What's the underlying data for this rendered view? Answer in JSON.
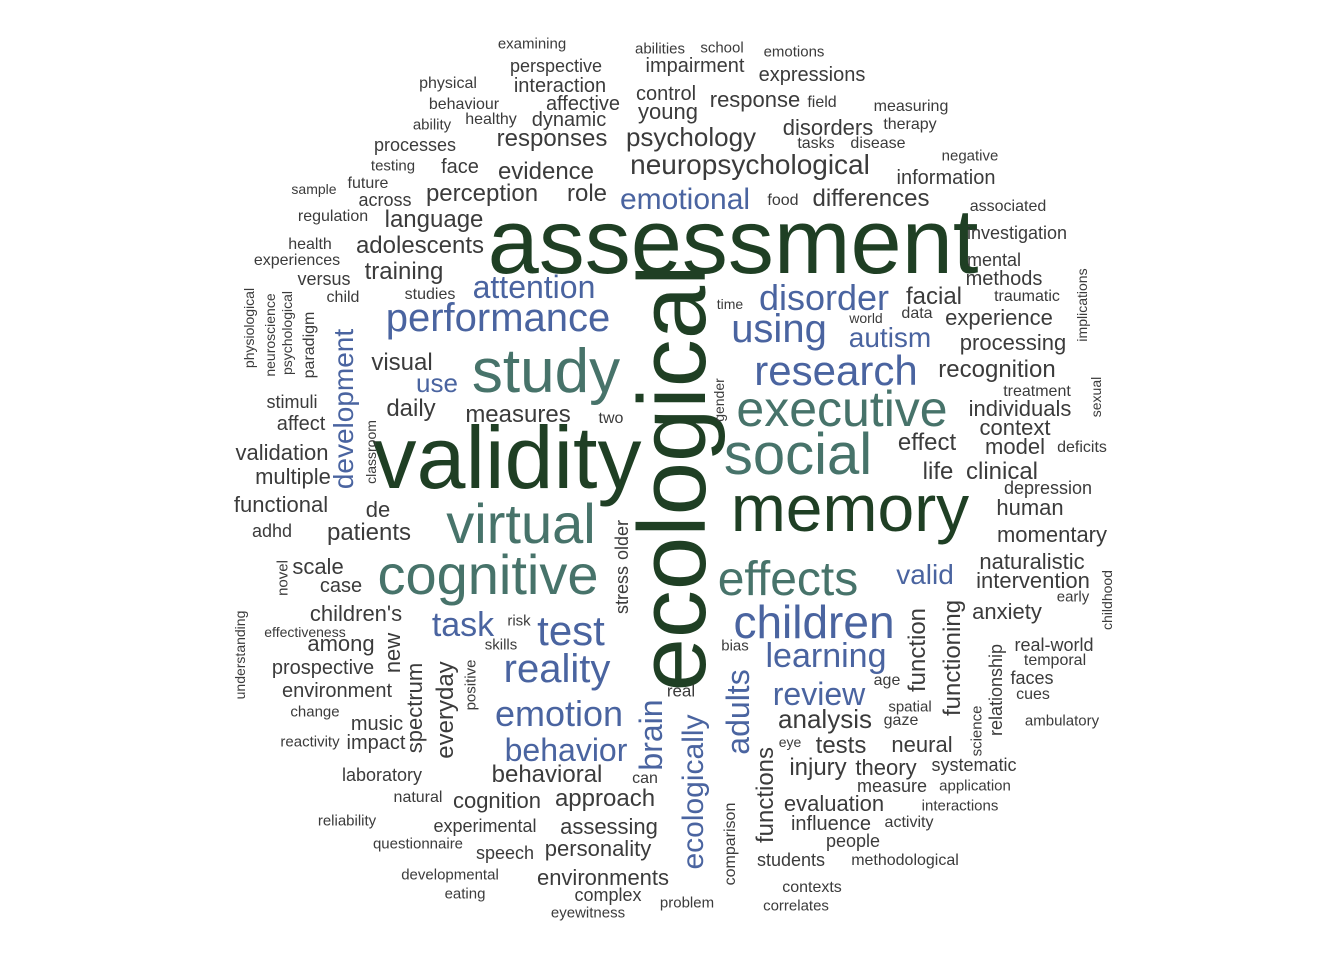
{
  "colors": {
    "dark": "#1F3F24",
    "teal": "#47736A",
    "blue": "#4A64A0",
    "gray": "#3B3B3B",
    "background": "#FFFFFF"
  },
  "words": [
    {
      "text": "assessment",
      "c": "dark"
    },
    {
      "text": "ecological",
      "c": "dark"
    },
    {
      "text": "validity",
      "c": "dark"
    },
    {
      "text": "memory",
      "c": "dark"
    },
    {
      "text": "cognitive",
      "c": "teal"
    },
    {
      "text": "study",
      "c": "teal"
    },
    {
      "text": "virtual",
      "c": "teal"
    },
    {
      "text": "social",
      "c": "teal"
    },
    {
      "text": "executive",
      "c": "teal"
    },
    {
      "text": "effects",
      "c": "teal"
    },
    {
      "text": "children",
      "c": "blue"
    },
    {
      "text": "research",
      "c": "blue"
    },
    {
      "text": "performance",
      "c": "blue"
    },
    {
      "text": "using",
      "c": "blue"
    },
    {
      "text": "disorder",
      "c": "blue"
    },
    {
      "text": "reality",
      "c": "blue"
    },
    {
      "text": "test",
      "c": "blue"
    },
    {
      "text": "emotion",
      "c": "blue"
    },
    {
      "text": "behavior",
      "c": "blue"
    },
    {
      "text": "learning",
      "c": "blue"
    },
    {
      "text": "review",
      "c": "blue"
    },
    {
      "text": "task",
      "c": "blue"
    },
    {
      "text": "attention",
      "c": "blue"
    },
    {
      "text": "emotional",
      "c": "blue"
    },
    {
      "text": "autism",
      "c": "blue"
    },
    {
      "text": "valid",
      "c": "blue"
    },
    {
      "text": "use",
      "c": "blue"
    },
    {
      "text": "development",
      "c": "blue"
    },
    {
      "text": "adults",
      "c": "blue"
    },
    {
      "text": "brain",
      "c": "blue"
    },
    {
      "text": "ecologically",
      "c": "blue"
    },
    {
      "text": "neuropsychological",
      "c": "gray"
    },
    {
      "text": "psychology",
      "c": "gray"
    },
    {
      "text": "responses",
      "c": "gray"
    },
    {
      "text": "evidence",
      "c": "gray"
    },
    {
      "text": "perception",
      "c": "gray"
    },
    {
      "text": "role",
      "c": "gray"
    },
    {
      "text": "differences",
      "c": "gray"
    },
    {
      "text": "language",
      "c": "gray"
    },
    {
      "text": "adolescents",
      "c": "gray"
    },
    {
      "text": "training",
      "c": "gray"
    },
    {
      "text": "facial",
      "c": "gray"
    },
    {
      "text": "experience",
      "c": "gray"
    },
    {
      "text": "processing",
      "c": "gray"
    },
    {
      "text": "recognition",
      "c": "gray"
    },
    {
      "text": "individuals",
      "c": "gray"
    },
    {
      "text": "context",
      "c": "gray"
    },
    {
      "text": "effect",
      "c": "gray"
    },
    {
      "text": "life",
      "c": "gray"
    },
    {
      "text": "clinical",
      "c": "gray"
    },
    {
      "text": "model",
      "c": "gray"
    },
    {
      "text": "visual",
      "c": "gray"
    },
    {
      "text": "daily",
      "c": "gray"
    },
    {
      "text": "measures",
      "c": "gray"
    },
    {
      "text": "patients",
      "c": "gray"
    },
    {
      "text": "validation",
      "c": "gray"
    },
    {
      "text": "multiple",
      "c": "gray"
    },
    {
      "text": "functional",
      "c": "gray"
    },
    {
      "text": "human",
      "c": "gray"
    },
    {
      "text": "momentary",
      "c": "gray"
    },
    {
      "text": "naturalistic",
      "c": "gray"
    },
    {
      "text": "intervention",
      "c": "gray"
    },
    {
      "text": "anxiety",
      "c": "gray"
    },
    {
      "text": "analysis",
      "c": "gray"
    },
    {
      "text": "tests",
      "c": "gray"
    },
    {
      "text": "injury",
      "c": "gray"
    },
    {
      "text": "neural",
      "c": "gray"
    },
    {
      "text": "theory",
      "c": "gray"
    },
    {
      "text": "behavioral",
      "c": "gray"
    },
    {
      "text": "approach",
      "c": "gray"
    },
    {
      "text": "cognition",
      "c": "gray"
    },
    {
      "text": "assessing",
      "c": "gray"
    },
    {
      "text": "personality",
      "c": "gray"
    },
    {
      "text": "environments",
      "c": "gray"
    },
    {
      "text": "evaluation",
      "c": "gray"
    },
    {
      "text": "influence",
      "c": "gray"
    },
    {
      "text": "children's",
      "c": "gray"
    },
    {
      "text": "among",
      "c": "gray"
    },
    {
      "text": "environment",
      "c": "gray"
    },
    {
      "text": "scale",
      "c": "gray"
    },
    {
      "text": "case",
      "c": "gray"
    },
    {
      "text": "de",
      "c": "gray"
    },
    {
      "text": "information",
      "c": "gray"
    },
    {
      "text": "methods",
      "c": "gray"
    },
    {
      "text": "mental",
      "c": "gray"
    },
    {
      "text": "investigation",
      "c": "gray"
    },
    {
      "text": "expressions",
      "c": "gray"
    },
    {
      "text": "response",
      "c": "gray"
    },
    {
      "text": "disorders",
      "c": "gray"
    },
    {
      "text": "impairment",
      "c": "gray"
    },
    {
      "text": "control",
      "c": "gray"
    },
    {
      "text": "young",
      "c": "gray"
    },
    {
      "text": "dynamic",
      "c": "gray"
    },
    {
      "text": "interaction",
      "c": "gray"
    },
    {
      "text": "perspective",
      "c": "gray"
    },
    {
      "text": "affective",
      "c": "gray"
    },
    {
      "text": "face",
      "c": "gray"
    },
    {
      "text": "processes",
      "c": "gray"
    },
    {
      "text": "across",
      "c": "gray"
    },
    {
      "text": "future",
      "c": "gray"
    },
    {
      "text": "regulation",
      "c": "gray"
    },
    {
      "text": "health",
      "c": "gray"
    },
    {
      "text": "experiences",
      "c": "gray"
    },
    {
      "text": "versus",
      "c": "gray"
    },
    {
      "text": "child",
      "c": "gray"
    },
    {
      "text": "studies",
      "c": "gray"
    },
    {
      "text": "stimuli",
      "c": "gray"
    },
    {
      "text": "affect",
      "c": "gray"
    },
    {
      "text": "adhd",
      "c": "gray"
    },
    {
      "text": "prospective",
      "c": "gray"
    },
    {
      "text": "music",
      "c": "gray"
    },
    {
      "text": "impact",
      "c": "gray"
    },
    {
      "text": "laboratory",
      "c": "gray"
    },
    {
      "text": "natural",
      "c": "gray"
    },
    {
      "text": "experimental",
      "c": "gray"
    },
    {
      "text": "speech",
      "c": "gray"
    },
    {
      "text": "complex",
      "c": "gray"
    },
    {
      "text": "functions",
      "c": "gray"
    },
    {
      "text": "function",
      "c": "gray"
    },
    {
      "text": "functioning",
      "c": "gray"
    },
    {
      "text": "everyday",
      "c": "gray"
    },
    {
      "text": "new",
      "c": "gray"
    },
    {
      "text": "spectrum",
      "c": "gray"
    },
    {
      "text": "stress",
      "c": "gray"
    },
    {
      "text": "older",
      "c": "gray"
    },
    {
      "text": "students",
      "c": "gray"
    },
    {
      "text": "people",
      "c": "gray"
    },
    {
      "text": "contexts",
      "c": "gray"
    },
    {
      "text": "systematic",
      "c": "gray"
    },
    {
      "text": "measure",
      "c": "gray"
    },
    {
      "text": "real-world",
      "c": "gray"
    },
    {
      "text": "temporal",
      "c": "gray"
    },
    {
      "text": "faces",
      "c": "gray"
    },
    {
      "text": "depression",
      "c": "gray"
    },
    {
      "text": "deficits",
      "c": "gray"
    },
    {
      "text": "traumatic",
      "c": "gray"
    },
    {
      "text": "treatment",
      "c": "gray"
    },
    {
      "text": "examining",
      "c": "gray"
    },
    {
      "text": "abilities",
      "c": "gray"
    },
    {
      "text": "school",
      "c": "gray"
    },
    {
      "text": "emotions",
      "c": "gray"
    },
    {
      "text": "physical",
      "c": "gray"
    },
    {
      "text": "behaviour",
      "c": "gray"
    },
    {
      "text": "healthy",
      "c": "gray"
    },
    {
      "text": "ability",
      "c": "gray"
    },
    {
      "text": "field",
      "c": "gray"
    },
    {
      "text": "measuring",
      "c": "gray"
    },
    {
      "text": "therapy",
      "c": "gray"
    },
    {
      "text": "tasks",
      "c": "gray"
    },
    {
      "text": "disease",
      "c": "gray"
    },
    {
      "text": "negative",
      "c": "gray"
    },
    {
      "text": "testing",
      "c": "gray"
    },
    {
      "text": "sample",
      "c": "gray"
    },
    {
      "text": "food",
      "c": "gray"
    },
    {
      "text": "associated",
      "c": "gray"
    },
    {
      "text": "time",
      "c": "gray"
    },
    {
      "text": "world",
      "c": "gray"
    },
    {
      "text": "data",
      "c": "gray"
    },
    {
      "text": "two",
      "c": "gray"
    },
    {
      "text": "risk",
      "c": "gray"
    },
    {
      "text": "skills",
      "c": "gray"
    },
    {
      "text": "bias",
      "c": "gray"
    },
    {
      "text": "real",
      "c": "gray"
    },
    {
      "text": "age",
      "c": "gray"
    },
    {
      "text": "spatial",
      "c": "gray"
    },
    {
      "text": "gaze",
      "c": "gray"
    },
    {
      "text": "eye",
      "c": "gray"
    },
    {
      "text": "can",
      "c": "gray"
    },
    {
      "text": "early",
      "c": "gray"
    },
    {
      "text": "cues",
      "c": "gray"
    },
    {
      "text": "ambulatory",
      "c": "gray"
    },
    {
      "text": "application",
      "c": "gray"
    },
    {
      "text": "interactions",
      "c": "gray"
    },
    {
      "text": "activity",
      "c": "gray"
    },
    {
      "text": "methodological",
      "c": "gray"
    },
    {
      "text": "correlates",
      "c": "gray"
    },
    {
      "text": "problem",
      "c": "gray"
    },
    {
      "text": "eyewitness",
      "c": "gray"
    },
    {
      "text": "eating",
      "c": "gray"
    },
    {
      "text": "developmental",
      "c": "gray"
    },
    {
      "text": "questionnaire",
      "c": "gray"
    },
    {
      "text": "reliability",
      "c": "gray"
    },
    {
      "text": "reactivity",
      "c": "gray"
    },
    {
      "text": "change",
      "c": "gray"
    },
    {
      "text": "effectiveness",
      "c": "gray"
    },
    {
      "text": "physiological",
      "c": "gray"
    },
    {
      "text": "neuroscience",
      "c": "gray"
    },
    {
      "text": "psychological",
      "c": "gray"
    },
    {
      "text": "paradigm",
      "c": "gray"
    },
    {
      "text": "classroom",
      "c": "gray"
    },
    {
      "text": "novel",
      "c": "gray"
    },
    {
      "text": "understanding",
      "c": "gray"
    },
    {
      "text": "positive",
      "c": "gray"
    },
    {
      "text": "gender",
      "c": "gray"
    },
    {
      "text": "implications",
      "c": "gray"
    },
    {
      "text": "sexual",
      "c": "gray"
    },
    {
      "text": "childhood",
      "c": "gray"
    },
    {
      "text": "relationship",
      "c": "gray"
    },
    {
      "text": "science",
      "c": "gray"
    },
    {
      "text": "comparison",
      "c": "gray"
    }
  ]
}
